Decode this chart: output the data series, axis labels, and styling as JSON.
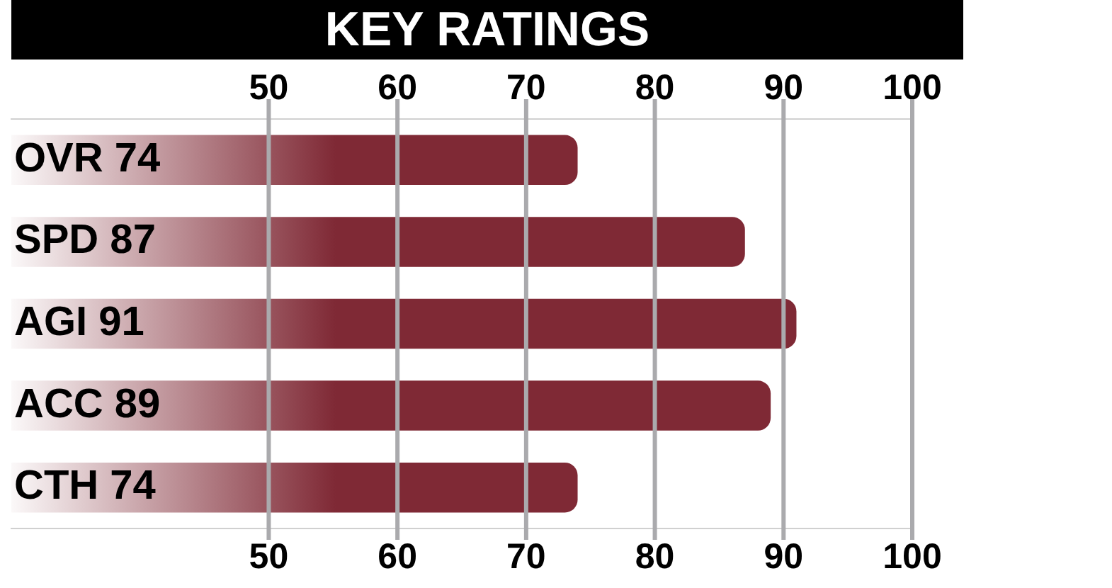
{
  "chart_data": {
    "type": "bar",
    "orientation": "horizontal",
    "title": "KEY RATINGS",
    "categories": [
      "OVR 74",
      "SPD 87",
      "AGI 91",
      "ACC 89",
      "CTH 74"
    ],
    "values": [
      74,
      87,
      91,
      89,
      74
    ],
    "color": "#7f2935",
    "xlim": [
      30,
      100
    ],
    "xticks": [
      50,
      60,
      70,
      80,
      90,
      100
    ],
    "x2lim": [
      30,
      100
    ],
    "x2ticks": [
      50,
      60,
      70,
      80,
      90,
      100
    ],
    "grid": "x",
    "legend": false
  }
}
